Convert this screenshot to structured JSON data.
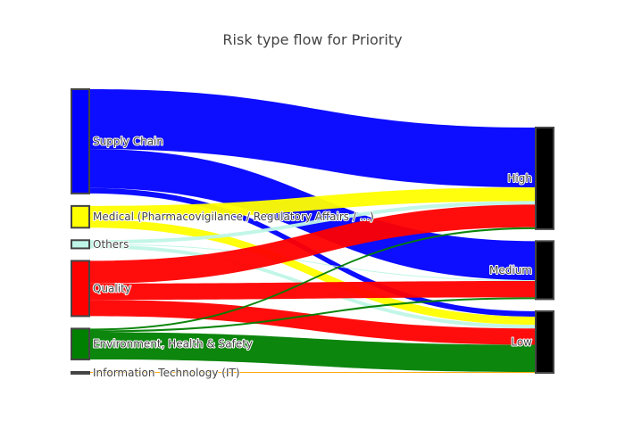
{
  "chart_data": {
    "type": "sankey",
    "title": "Risk type flow for Priority",
    "sources": [
      {
        "id": "supply",
        "label": "Supply Chain",
        "color": "#0000ff"
      },
      {
        "id": "medical",
        "label": "Medical (Pharmacovigilance / Regulatory Affairs / ...)",
        "color": "#ffff00"
      },
      {
        "id": "others",
        "label": "Others",
        "color": "#bff5e6"
      },
      {
        "id": "quality",
        "label": "Quality",
        "color": "#ff0000"
      },
      {
        "id": "ehs",
        "label": "Environment, Health & Safety",
        "color": "#008000"
      },
      {
        "id": "it",
        "label": "Information Technology (IT)",
        "color": "#ffa500"
      }
    ],
    "targets": [
      {
        "id": "high",
        "label": "High",
        "color": "#000000"
      },
      {
        "id": "medium",
        "label": "Medium",
        "color": "#000000"
      },
      {
        "id": "low",
        "label": "Low",
        "color": "#000000"
      }
    ],
    "links": [
      {
        "source": "supply",
        "target": "high",
        "value": 66
      },
      {
        "source": "supply",
        "target": "medium",
        "value": 43
      },
      {
        "source": "supply",
        "target": "low",
        "value": 6
      },
      {
        "source": "medical",
        "target": "high",
        "value": 15
      },
      {
        "source": "medical",
        "target": "low",
        "value": 9
      },
      {
        "source": "others",
        "target": "high",
        "value": 4
      },
      {
        "source": "others",
        "target": "medium",
        "value": 1
      },
      {
        "source": "others",
        "target": "low",
        "value": 4
      },
      {
        "source": "quality",
        "target": "high",
        "value": 25
      },
      {
        "source": "quality",
        "target": "medium",
        "value": 18
      },
      {
        "source": "quality",
        "target": "low",
        "value": 18
      },
      {
        "source": "ehs",
        "target": "high",
        "value": 2
      },
      {
        "source": "ehs",
        "target": "medium",
        "value": 2
      },
      {
        "source": "ehs",
        "target": "low",
        "value": 30
      },
      {
        "source": "it",
        "target": "low",
        "value": 1
      }
    ]
  }
}
